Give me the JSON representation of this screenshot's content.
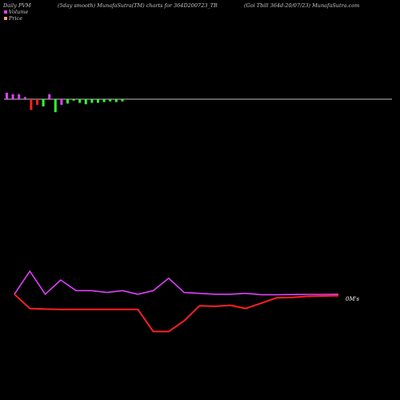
{
  "header": {
    "left_title": "Daily PVM",
    "center_title": "(5day smooth) MunafaSutra(TM) charts for 364D200723_TB",
    "right_title": "(Goi  Tbill 364d-20/07/23) MunafaSutra.com"
  },
  "legend": {
    "items": [
      {
        "label": "Volume",
        "color": "#e040fb"
      },
      {
        "label": "Price",
        "color": "#ffa07a"
      }
    ]
  },
  "chart_data": {
    "type": "bar",
    "baseline_color": "#c0c0c0",
    "volume_bars": {
      "values": [
        9,
        7,
        7,
        3,
        -15,
        -8,
        -10,
        7,
        -18,
        -8,
        -6,
        -2,
        -5,
        -7,
        -5,
        -5,
        -4,
        -3,
        -4,
        -3
      ],
      "colors": [
        "#e040fb",
        "#e040fb",
        "#e040fb",
        "#e040fb",
        "#ff2020",
        "#ff2020",
        "#33ff33",
        "#e040fb",
        "#33ff33",
        "#e040fb",
        "#33ff33",
        "#33ff33",
        "#33ff33",
        "#33ff33",
        "#33ff33",
        "#33ff33",
        "#33ff33",
        "#33ff33",
        "#33ff33",
        "#33ff33"
      ]
    },
    "lines": [
      {
        "color": "#e040fb",
        "values": [
          98,
          111,
          98,
          106,
          100,
          100,
          99,
          100,
          98,
          100,
          107,
          99,
          98.5,
          98,
          98,
          98.5,
          97.7,
          97.7,
          97.8,
          97.9,
          97.9,
          98
        ]
      },
      {
        "color": "#ff2020",
        "values": [
          98,
          90,
          89.6,
          89.5,
          89.5,
          89.5,
          89.5,
          89.5,
          89.5,
          77,
          77,
          83,
          91.5,
          91.2,
          91.8,
          90,
          93,
          96,
          96.2,
          96.8,
          97,
          97.2
        ]
      }
    ],
    "end_label": "0M's",
    "ylim": [
      70,
      115
    ]
  }
}
